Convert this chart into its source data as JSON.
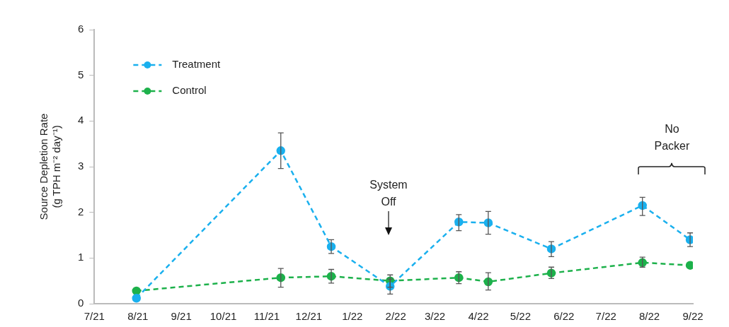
{
  "chart_data": {
    "type": "line",
    "ylabel": "Source Depletion Rate\n(g TPH m⁻² day⁻¹)",
    "x": [
      "2021-07-31",
      "2021-11-11",
      "2021-12-17",
      "2022-01-28",
      "2022-03-18",
      "2022-04-08",
      "2022-05-23",
      "2022-07-27",
      "2022-08-30"
    ],
    "series": [
      {
        "name": "Treatment",
        "color": "#1ab0ee",
        "values": [
          0.12,
          3.35,
          1.25,
          0.38,
          1.79,
          1.77,
          1.2,
          2.15,
          1.4
        ],
        "errors": [
          null,
          [
            2.96,
            3.74
          ],
          [
            1.1,
            1.4
          ],
          [
            0.21,
            0.54
          ],
          [
            1.6,
            1.95
          ],
          [
            1.52,
            2.02
          ],
          [
            1.03,
            1.36
          ],
          [
            1.93,
            2.33
          ],
          [
            1.25,
            1.55
          ]
        ]
      },
      {
        "name": "Control",
        "color": "#1db14b",
        "values": [
          0.28,
          0.57,
          0.6,
          0.5,
          0.57,
          0.48,
          0.67,
          0.9,
          0.84
        ],
        "errors": [
          null,
          [
            0.36,
            0.77
          ],
          [
            0.45,
            0.75
          ],
          [
            0.36,
            0.63
          ],
          [
            0.44,
            0.7
          ],
          [
            0.3,
            0.68
          ],
          [
            0.55,
            0.8
          ],
          [
            0.8,
            1.02
          ],
          null
        ]
      }
    ],
    "xlim": [
      "2021-07-01",
      "2022-09-01"
    ],
    "xticks": [
      {
        "value": "2021-07-01",
        "label": "7/21"
      },
      {
        "value": "2021-08-01",
        "label": "8/21"
      },
      {
        "value": "2021-09-01",
        "label": "9/21"
      },
      {
        "value": "2021-10-01",
        "label": "10/21"
      },
      {
        "value": "2021-11-01",
        "label": "11/21"
      },
      {
        "value": "2021-12-01",
        "label": "12/21"
      },
      {
        "value": "2022-01-01",
        "label": "1/22"
      },
      {
        "value": "2022-02-01",
        "label": "2/22"
      },
      {
        "value": "2022-03-01",
        "label": "3/22"
      },
      {
        "value": "2022-04-01",
        "label": "4/22"
      },
      {
        "value": "2022-05-01",
        "label": "5/22"
      },
      {
        "value": "2022-06-01",
        "label": "6/22"
      },
      {
        "value": "2022-07-01",
        "label": "7/22"
      },
      {
        "value": "2022-08-01",
        "label": "8/22"
      },
      {
        "value": "2022-09-01",
        "label": "9/22"
      }
    ],
    "ylim": [
      0,
      6
    ],
    "yticks": [
      0,
      1,
      2,
      3,
      4,
      5,
      6
    ],
    "annotations": [
      "System\nOff",
      "No\nPacker"
    ],
    "grid": false,
    "legend": "top left",
    "marker": "circle",
    "line_style": "dashed"
  }
}
